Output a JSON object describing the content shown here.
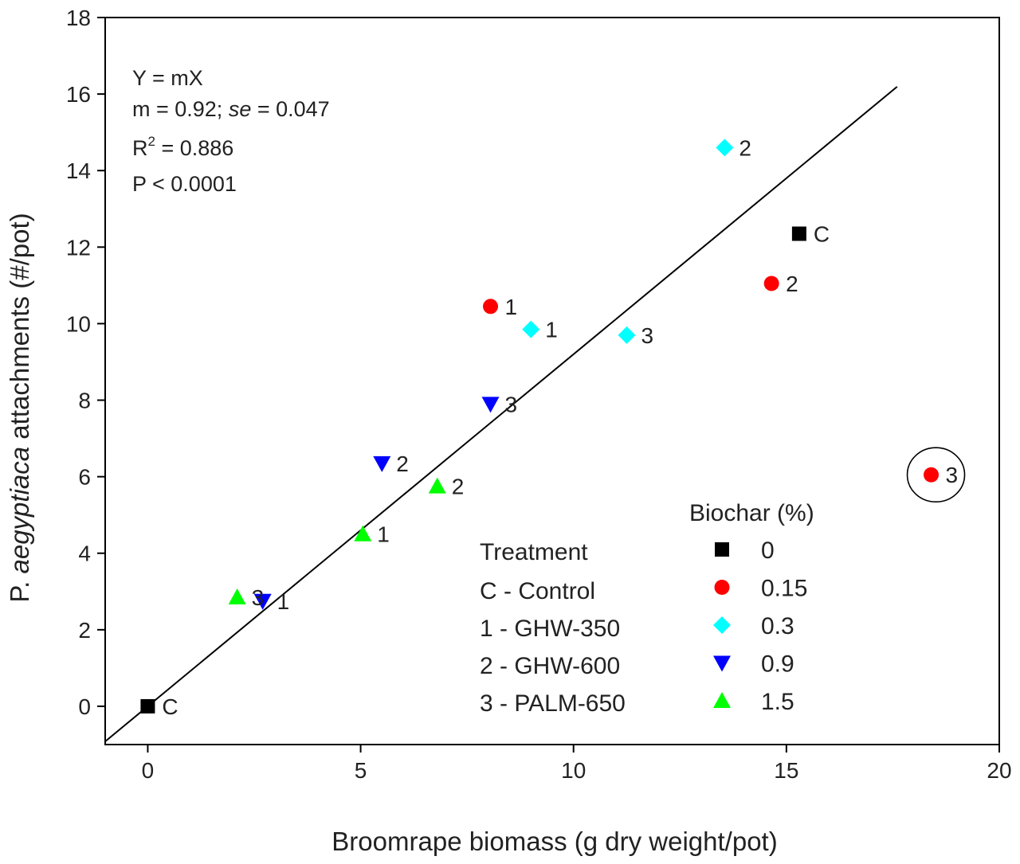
{
  "chart_data": {
    "type": "scatter",
    "xlabel": "Broomrape biomass (g dry weight/pot)",
    "ylabel_prefix": "P. ",
    "ylabel_italic": "aegyptiaca",
    "ylabel_suffix": " attachments (#/pot)",
    "xlim": [
      -1,
      20
    ],
    "ylim": [
      -1,
      18
    ],
    "xticks": [
      0,
      5,
      10,
      15,
      20
    ],
    "yticks": [
      0,
      2,
      4,
      6,
      8,
      10,
      12,
      14,
      16,
      18
    ],
    "grid": false,
    "stats": {
      "equation": "Y = mX",
      "m_text": "m = 0.92; ",
      "se_label": "se",
      "se_text": " = 0.047",
      "r2_label": "R",
      "r2_sup": "2",
      "r2_text": " = 0.886",
      "p_text": "P < 0.0001"
    },
    "fit_line": {
      "slope": 0.92,
      "x_start": -1,
      "x_end": 17.6
    },
    "series": [
      {
        "name": "0",
        "color": "#000000",
        "marker": "square",
        "points": [
          {
            "x": 0,
            "y": 0,
            "label": "C"
          },
          {
            "x": 15.3,
            "y": 12.35,
            "label": "C"
          }
        ]
      },
      {
        "name": "0.15",
        "color": "#ff0000",
        "marker": "circle",
        "points": [
          {
            "x": 8.05,
            "y": 10.45,
            "label": "1"
          },
          {
            "x": 14.65,
            "y": 11.05,
            "label": "2"
          },
          {
            "x": 18.4,
            "y": 6.05,
            "label": "3"
          }
        ]
      },
      {
        "name": "0.3",
        "color": "#00ffff",
        "marker": "diamond",
        "points": [
          {
            "x": 9.0,
            "y": 9.85,
            "label": "1"
          },
          {
            "x": 13.55,
            "y": 14.6,
            "label": "2"
          },
          {
            "x": 11.25,
            "y": 9.7,
            "label": "3"
          }
        ]
      },
      {
        "name": "0.9",
        "color": "#0000ff",
        "marker": "triangle-down",
        "points": [
          {
            "x": 2.7,
            "y": 2.75,
            "label": "1"
          },
          {
            "x": 5.5,
            "y": 6.35,
            "label": "2"
          },
          {
            "x": 8.05,
            "y": 7.9,
            "label": "3"
          }
        ]
      },
      {
        "name": "1.5",
        "color": "#00ff00",
        "marker": "triangle-up",
        "points": [
          {
            "x": 5.05,
            "y": 4.5,
            "label": "1"
          },
          {
            "x": 6.8,
            "y": 5.75,
            "label": "2"
          },
          {
            "x": 2.1,
            "y": 2.85,
            "label": "3"
          }
        ]
      }
    ],
    "outlier": {
      "x": 18.4,
      "y": 6.05
    },
    "treatment_legend": {
      "title": "Treatment",
      "items": [
        "C - Control",
        "1 - GHW-350",
        "2 - GHW-600",
        "3 - PALM-650"
      ]
    },
    "biochar_legend": {
      "title": "Biochar (%)"
    }
  }
}
